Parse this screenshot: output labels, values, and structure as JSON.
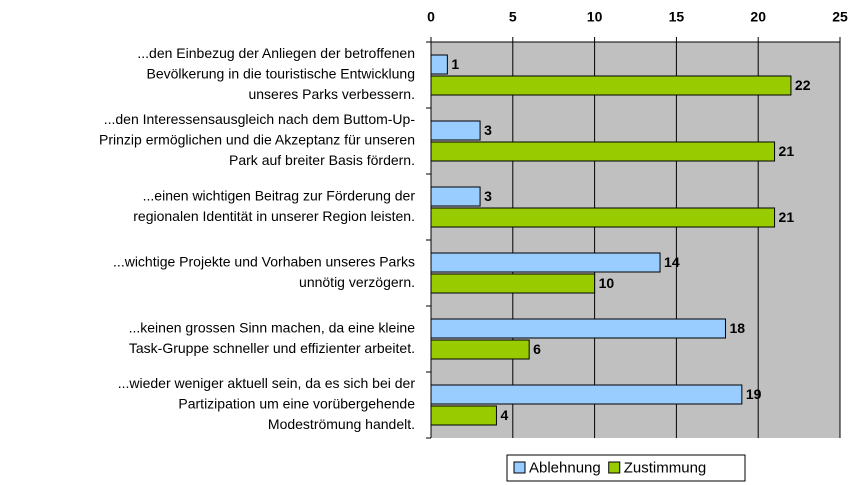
{
  "chart_data": {
    "type": "bar",
    "orientation": "horizontal",
    "categories": [
      [
        "...den Einbezug der Anliegen der betroffenen",
        "Bevölkerung in die touristische Entwicklung",
        "unseres Parks verbessern."
      ],
      [
        "...den Interessensausgleich nach dem Buttom-Up-",
        "Prinzip ermöglichen und die Akzeptanz für unseren",
        "Park auf breiter Basis fördern."
      ],
      [
        "...einen wichtigen Beitrag zur Förderung der",
        "regionalen Identität in unserer Region leisten."
      ],
      [
        "...wichtige Projekte und Vorhaben unseres Parks",
        "unnötig verzögern."
      ],
      [
        "...keinen grossen Sinn machen, da eine kleine",
        "Task-Gruppe schneller und effizienter arbeitet."
      ],
      [
        "...wieder weniger aktuell sein, da es sich bei der",
        "Partizipation um eine vorübergehende",
        "Modeströmung handelt."
      ]
    ],
    "series": [
      {
        "name": "Ablehnung",
        "color": "#99ccff",
        "values": [
          1,
          3,
          3,
          14,
          18,
          19
        ]
      },
      {
        "name": "Zustimmung",
        "color": "#99cc00",
        "values": [
          22,
          21,
          21,
          10,
          6,
          4
        ]
      }
    ],
    "xlim": [
      0,
      25
    ],
    "xticks": [
      0,
      5,
      10,
      15,
      20,
      25
    ],
    "grid": true,
    "legend": "bottom"
  }
}
